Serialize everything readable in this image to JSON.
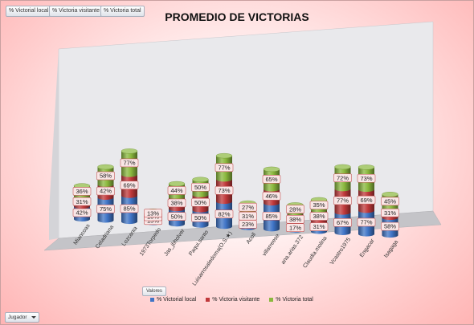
{
  "field_buttons": [
    "% Victorial local",
    "% Victoria visitante",
    "% Victoria total"
  ],
  "legend_title": "Valores",
  "filter_button": "Jugador",
  "colors": {
    "local": "#3f74c6",
    "visitante": "#c0393b",
    "total": "#8ab83d",
    "label_bg": "#f9e6e6",
    "label_border": "#c45a5a"
  },
  "chart_data": {
    "type": "bar",
    "subtype": "stacked-3d-cylinder",
    "title": "PROMEDIO DE VICTORIAS",
    "categories": [
      "Miancoas",
      "Celadriana",
      "Lozcania",
      "1973Torpedo",
      "Jas_jbholver",
      "Paqui.santo",
      "Luisarrosaledoma(O.S.★)",
      "Acoll",
      "villarreese",
      "ana.arias.372",
      "Claudia.molina",
      "Vcastro1975",
      "Engacar",
      "Isagaga"
    ],
    "series": [
      {
        "name": "% Victorial local",
        "values": [
          42,
          75,
          85,
          15,
          50,
          50,
          82,
          23,
          85,
          17,
          31,
          67,
          77,
          58
        ],
        "labels": [
          "42%",
          "75%",
          "85%",
          "15%",
          "50%",
          "50%",
          "82%",
          "23%",
          "85%",
          "17%",
          "31%",
          "67%",
          "77%",
          "58%"
        ]
      },
      {
        "name": "% Victoria visitante",
        "values": [
          31,
          42,
          69,
          10,
          38,
          50,
          73,
          31,
          46,
          38,
          38,
          77,
          69,
          31
        ],
        "labels": [
          "31%",
          "42%",
          "69%",
          "10%",
          "38%",
          "50%",
          "73%",
          "31%",
          "46%",
          "38%",
          "38%",
          "77%",
          "69%",
          "31%"
        ]
      },
      {
        "name": "% Victoria total",
        "values": [
          36,
          58,
          77,
          13,
          44,
          50,
          77,
          27,
          65,
          28,
          35,
          72,
          73,
          45
        ],
        "labels": [
          "36%",
          "58%",
          "77%",
          "13%",
          "44%",
          "50%",
          "77%",
          "27%",
          "65%",
          "28%",
          "35%",
          "72%",
          "73%",
          "45%"
        ]
      }
    ],
    "legend_position": "bottom",
    "grid": false
  }
}
